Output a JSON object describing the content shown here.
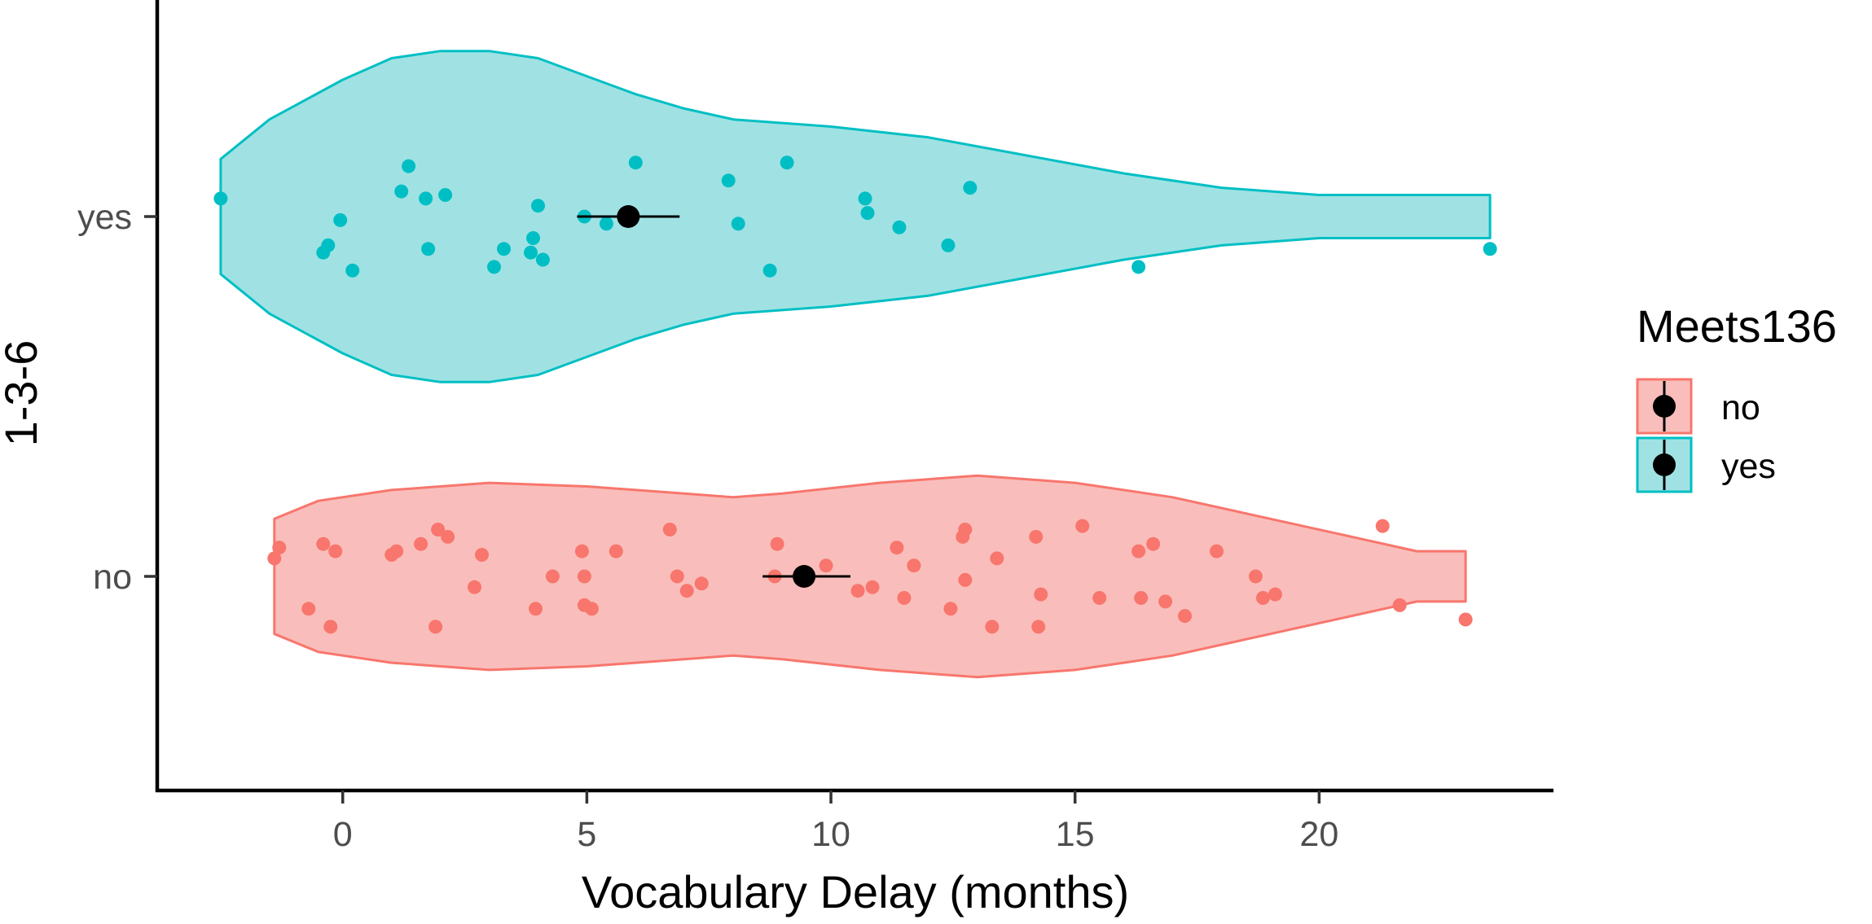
{
  "chart_data": {
    "type": "violin",
    "xlabel": "Vocabulary Delay (months)",
    "ylabel": "1-3-6",
    "categories": [
      "no",
      "yes"
    ],
    "xlim": [
      -3.8,
      24.8
    ],
    "xticks": [
      0,
      5,
      10,
      15,
      20
    ],
    "grid": false,
    "legend": {
      "title": "Meets136",
      "position": "right",
      "entries": [
        "no",
        "yes"
      ]
    },
    "colors": {
      "no": "#F8766D",
      "yes": "#00BFC4",
      "mean": "#000000"
    },
    "series": [
      {
        "name": "yes",
        "mean": 5.85,
        "ci": [
          4.8,
          6.9
        ],
        "violin_range": [
          -2.5,
          23.5
        ],
        "violin_profile": [
          [
            -2.5,
            0.16
          ],
          [
            -1.5,
            0.27
          ],
          [
            0,
            0.38
          ],
          [
            1,
            0.44
          ],
          [
            2,
            0.46
          ],
          [
            3,
            0.46
          ],
          [
            4,
            0.44
          ],
          [
            5,
            0.39
          ],
          [
            6,
            0.34
          ],
          [
            7,
            0.3
          ],
          [
            8,
            0.27
          ],
          [
            10,
            0.25
          ],
          [
            12,
            0.22
          ],
          [
            14,
            0.17
          ],
          [
            16,
            0.12
          ],
          [
            18,
            0.08
          ],
          [
            20,
            0.06
          ],
          [
            21.5,
            0.06
          ],
          [
            22.5,
            0.06
          ],
          [
            23.5,
            0.06
          ]
        ],
        "points": [
          [
            -2.5,
            -0.05
          ],
          [
            -0.4,
            0.1
          ],
          [
            -0.3,
            0.08
          ],
          [
            -0.05,
            0.01
          ],
          [
            0.2,
            0.15
          ],
          [
            1.2,
            -0.07
          ],
          [
            1.35,
            -0.14
          ],
          [
            1.7,
            -0.05
          ],
          [
            1.75,
            0.09
          ],
          [
            2.1,
            -0.06
          ],
          [
            3.1,
            0.14
          ],
          [
            3.3,
            0.09
          ],
          [
            3.85,
            0.1
          ],
          [
            3.9,
            0.06
          ],
          [
            4.0,
            -0.03
          ],
          [
            4.1,
            0.12
          ],
          [
            4.95,
            0.0
          ],
          [
            5.4,
            0.02
          ],
          [
            6.0,
            -0.15
          ],
          [
            7.9,
            -0.1
          ],
          [
            8.1,
            0.02
          ],
          [
            8.75,
            0.15
          ],
          [
            9.1,
            -0.15
          ],
          [
            10.7,
            -0.05
          ],
          [
            10.75,
            -0.01
          ],
          [
            11.4,
            0.03
          ],
          [
            12.4,
            0.08
          ],
          [
            12.85,
            -0.08
          ],
          [
            16.3,
            0.14
          ],
          [
            23.5,
            0.09
          ]
        ]
      },
      {
        "name": "no",
        "mean": 9.45,
        "ci": [
          8.6,
          10.4
        ],
        "violin_range": [
          -1.4,
          23.0
        ],
        "violin_profile": [
          [
            -1.4,
            0.16
          ],
          [
            -0.5,
            0.21
          ],
          [
            1,
            0.24
          ],
          [
            3,
            0.26
          ],
          [
            5,
            0.25
          ],
          [
            7,
            0.23
          ],
          [
            8,
            0.22
          ],
          [
            9,
            0.23
          ],
          [
            11,
            0.26
          ],
          [
            13,
            0.28
          ],
          [
            15,
            0.26
          ],
          [
            17,
            0.22
          ],
          [
            19,
            0.16
          ],
          [
            21,
            0.1
          ],
          [
            22,
            0.07
          ],
          [
            23.0,
            0.07
          ]
        ],
        "points": [
          [
            -1.4,
            -0.05
          ],
          [
            -1.3,
            -0.08
          ],
          [
            -0.7,
            0.09
          ],
          [
            -0.4,
            -0.09
          ],
          [
            -0.25,
            0.14
          ],
          [
            -0.15,
            -0.07
          ],
          [
            1.0,
            -0.06
          ],
          [
            1.1,
            -0.07
          ],
          [
            1.6,
            -0.09
          ],
          [
            1.9,
            0.14
          ],
          [
            1.95,
            -0.13
          ],
          [
            2.15,
            -0.11
          ],
          [
            2.7,
            0.03
          ],
          [
            2.85,
            -0.06
          ],
          [
            3.95,
            0.09
          ],
          [
            4.3,
            0.0
          ],
          [
            4.9,
            -0.07
          ],
          [
            4.95,
            0.0
          ],
          [
            4.95,
            0.08
          ],
          [
            5.1,
            0.09
          ],
          [
            5.6,
            -0.07
          ],
          [
            6.7,
            -0.13
          ],
          [
            6.85,
            0.0
          ],
          [
            7.05,
            0.04
          ],
          [
            7.35,
            0.02
          ],
          [
            8.85,
            0.0
          ],
          [
            8.9,
            -0.09
          ],
          [
            9.9,
            -0.03
          ],
          [
            10.55,
            0.04
          ],
          [
            10.85,
            0.03
          ],
          [
            11.35,
            -0.08
          ],
          [
            11.5,
            0.06
          ],
          [
            11.7,
            -0.03
          ],
          [
            12.45,
            0.09
          ],
          [
            12.75,
            0.01
          ],
          [
            12.7,
            -0.11
          ],
          [
            12.75,
            -0.13
          ],
          [
            13.3,
            0.14
          ],
          [
            13.4,
            -0.05
          ],
          [
            14.2,
            -0.11
          ],
          [
            14.25,
            0.14
          ],
          [
            14.3,
            0.05
          ],
          [
            15.15,
            -0.14
          ],
          [
            15.5,
            0.06
          ],
          [
            16.3,
            -0.07
          ],
          [
            16.35,
            0.06
          ],
          [
            16.6,
            -0.09
          ],
          [
            16.85,
            0.07
          ],
          [
            17.25,
            0.11
          ],
          [
            17.9,
            -0.07
          ],
          [
            18.7,
            0.0
          ],
          [
            18.85,
            0.06
          ],
          [
            19.1,
            0.05
          ],
          [
            21.3,
            -0.14
          ],
          [
            21.65,
            0.08
          ],
          [
            23.0,
            0.12
          ]
        ]
      }
    ]
  }
}
